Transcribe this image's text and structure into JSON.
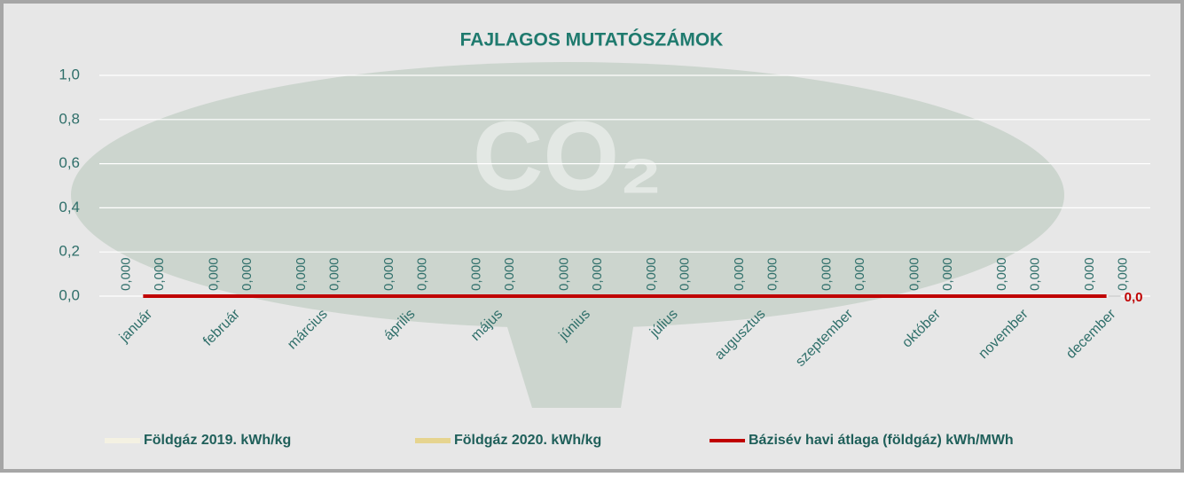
{
  "chart_data": {
    "type": "bar",
    "title": "FAJLAGOS MUTATÓSZÁMOK",
    "watermark": "CO₂",
    "categories": [
      "január",
      "február",
      "március",
      "április",
      "május",
      "június",
      "július",
      "augusztus",
      "szeptember",
      "október",
      "november",
      "december"
    ],
    "series": [
      {
        "name": "Földgáz 2019. kWh/kg",
        "type": "bar",
        "color": "#f4f1e2",
        "values": [
          0,
          0,
          0,
          0,
          0,
          0,
          0,
          0,
          0,
          0,
          0,
          0
        ],
        "value_labels": [
          "0,000",
          "0,000",
          "0,000",
          "0,000",
          "0,000",
          "0,000",
          "0,000",
          "0,000",
          "0,000",
          "0,000",
          "0,000",
          "0,000"
        ]
      },
      {
        "name": "Földgáz 2020. kWh/kg",
        "type": "bar",
        "color": "#e6d48f",
        "values": [
          0,
          0,
          0,
          0,
          0,
          0,
          0,
          0,
          0,
          0,
          0,
          0
        ],
        "value_labels": [
          "0,000",
          "0,000",
          "0,000",
          "0,000",
          "0,000",
          "0,000",
          "0,000",
          "0,000",
          "0,000",
          "0,000",
          "0,000",
          "0,000"
        ]
      },
      {
        "name": "Bázisév havi átlaga (földgáz) kWh/MWh",
        "type": "line",
        "color": "#c00000",
        "values": [
          0,
          0,
          0,
          0,
          0,
          0,
          0,
          0,
          0,
          0,
          0,
          0
        ],
        "value_labels": [
          null,
          null,
          null,
          null,
          null,
          null,
          null,
          null,
          null,
          null,
          null,
          "0,0"
        ]
      }
    ],
    "ylim": [
      0,
      1
    ],
    "yticks": [
      {
        "value": 0,
        "label": "0,0"
      },
      {
        "value": 0.2,
        "label": "0,2"
      },
      {
        "value": 0.4,
        "label": "0,4"
      },
      {
        "value": 0.6,
        "label": "0,6"
      },
      {
        "value": 0.8,
        "label": "0,8"
      },
      {
        "value": 1,
        "label": "1,0"
      }
    ],
    "grid": true,
    "legend": "bottom"
  }
}
